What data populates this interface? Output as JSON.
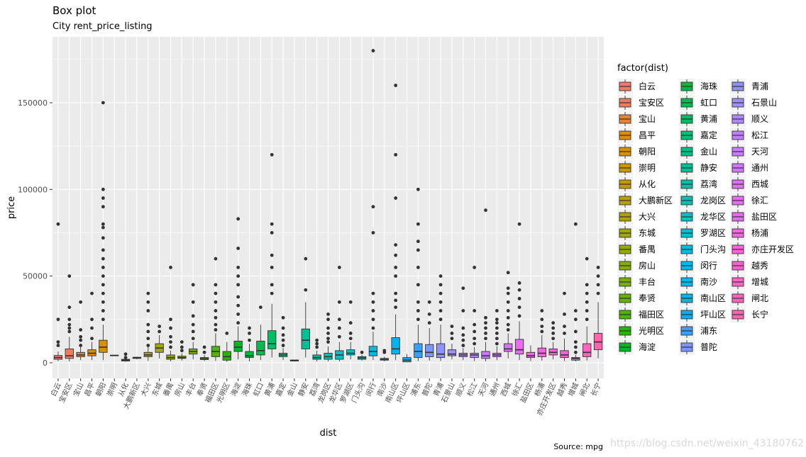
{
  "title": "Box plot",
  "subtitle": "City rent_price_listing",
  "caption": "Source: mpg",
  "watermark": "https://blog.csdn.net/weixin_43180762",
  "chart_data": {
    "type": "box",
    "xlabel": "dist",
    "ylabel": "price",
    "ylim": [
      -9000,
      188000
    ],
    "yticks": [
      0,
      50000,
      100000,
      150000
    ],
    "ytick_labels": [
      "0",
      "50000",
      "100000",
      "150000"
    ],
    "grid": true,
    "legend": {
      "title": "factor(dist)",
      "placement": "right"
    },
    "series": [
      {
        "name": "白云",
        "q1": 2000,
        "median": 3000,
        "q3": 4200,
        "lower": 900,
        "upper": 6500,
        "outliers": [
          10000,
          12000,
          25000,
          80000
        ],
        "color": "#F8766D"
      },
      {
        "name": "宝安区",
        "q1": 2500,
        "median": 4000,
        "q3": 8000,
        "lower": 800,
        "upper": 15000,
        "outliers": [
          18000,
          20000,
          22000,
          25000,
          32000,
          50000
        ],
        "color": "#F17C5D"
      },
      {
        "name": "宝山",
        "q1": 3500,
        "median": 4500,
        "q3": 6000,
        "lower": 1500,
        "upper": 9000,
        "outliers": [
          10000,
          13000,
          15000,
          19000,
          35000
        ],
        "color": "#EA8331"
      },
      {
        "name": "昌平",
        "q1": 4000,
        "median": 5500,
        "q3": 7500,
        "lower": 1500,
        "upper": 12000,
        "outliers": [
          14000,
          20000,
          25000,
          40000
        ],
        "color": "#E28A00"
      },
      {
        "name": "朝阳",
        "q1": 6000,
        "median": 9000,
        "q3": 13000,
        "lower": 1500,
        "upper": 22000,
        "outliers": [
          25000,
          30000,
          35000,
          40000,
          45000,
          50000,
          55000,
          60000,
          65000,
          72000,
          78000,
          80000,
          90000,
          95000,
          100000,
          150000
        ],
        "color": "#D89000"
      },
      {
        "name": "崇明",
        "q1": 4000,
        "median": 4200,
        "q3": 4400,
        "lower": 4000,
        "upper": 4400,
        "outliers": [],
        "color": "#CE9600"
      },
      {
        "name": "从化",
        "q1": 1000,
        "median": 1500,
        "q3": 2000,
        "lower": 600,
        "upper": 2500,
        "outliers": [
          3000,
          5000
        ],
        "color": "#C49A00"
      },
      {
        "name": "大鹏新区",
        "q1": 2500,
        "median": 2800,
        "q3": 3200,
        "lower": 2000,
        "upper": 3500,
        "outliers": [],
        "color": "#B9A000"
      },
      {
        "name": "大兴",
        "q1": 3500,
        "median": 4500,
        "q3": 6000,
        "lower": 1000,
        "upper": 9000,
        "outliers": [
          10000,
          14000,
          18000,
          22000,
          30000,
          35000,
          40000
        ],
        "color": "#ACA300"
      },
      {
        "name": "东城",
        "q1": 6000,
        "median": 8500,
        "q3": 11000,
        "lower": 2500,
        "upper": 16000,
        "outliers": [
          18000,
          21000
        ],
        "color": "#A1A700"
      },
      {
        "name": "番禺",
        "q1": 2000,
        "median": 3000,
        "q3": 4500,
        "lower": 800,
        "upper": 7000,
        "outliers": [
          9000,
          12000,
          15000,
          20000,
          25000,
          55000
        ],
        "color": "#94AA00"
      },
      {
        "name": "房山",
        "q1": 2500,
        "median": 3000,
        "q3": 3800,
        "lower": 1200,
        "upper": 5500,
        "outliers": [
          7000,
          9000,
          12000
        ],
        "color": "#86AC00"
      },
      {
        "name": "丰台",
        "q1": 5000,
        "median": 6500,
        "q3": 8000,
        "lower": 2000,
        "upper": 12000,
        "outliers": [
          14000,
          18000,
          22000,
          27000,
          35000,
          45000
        ],
        "color": "#75B000"
      },
      {
        "name": "奉贤",
        "q1": 1800,
        "median": 2500,
        "q3": 3000,
        "lower": 1000,
        "upper": 4500,
        "outliers": [
          6000,
          9000
        ],
        "color": "#64B200"
      },
      {
        "name": "福田区",
        "q1": 3500,
        "median": 6500,
        "q3": 9500,
        "lower": 1000,
        "upper": 17000,
        "outliers": [
          19000,
          22000,
          26000,
          30000,
          35000,
          40000,
          45000,
          60000
        ],
        "color": "#4CB500"
      },
      {
        "name": "光明区",
        "q1": 1500,
        "median": 3500,
        "q3": 6500,
        "lower": 500,
        "upper": 12000,
        "outliers": [
          17000
        ],
        "color": "#25B700"
      },
      {
        "name": "海淀",
        "q1": 6500,
        "median": 9000,
        "q3": 12500,
        "lower": 2000,
        "upper": 21000,
        "outliers": [
          23000,
          28000,
          33000,
          38000,
          45000,
          50000,
          55000,
          66000,
          83000
        ],
        "color": "#00B81F"
      },
      {
        "name": "海珠",
        "q1": 3000,
        "median": 4000,
        "q3": 6500,
        "lower": 800,
        "upper": 11000,
        "outliers": [
          13000,
          17000,
          20000
        ],
        "color": "#00BA38"
      },
      {
        "name": "虹口",
        "q1": 4500,
        "median": 7000,
        "q3": 12500,
        "lower": 1500,
        "upper": 22000,
        "outliers": [
          32000
        ],
        "color": "#00BB4E"
      },
      {
        "name": "黄浦",
        "q1": 8000,
        "median": 11000,
        "q3": 18500,
        "lower": 3000,
        "upper": 34000,
        "outliers": [
          40000,
          45000,
          55000,
          62000,
          75000,
          80000,
          120000
        ],
        "color": "#00BC63"
      },
      {
        "name": "嘉定",
        "q1": 3500,
        "median": 4500,
        "q3": 5500,
        "lower": 1500,
        "upper": 8500,
        "outliers": [
          10000,
          13000,
          16000,
          20000,
          26000
        ],
        "color": "#00BE75"
      },
      {
        "name": "金山",
        "q1": 1000,
        "median": 1300,
        "q3": 1600,
        "lower": 700,
        "upper": 1800,
        "outliers": [],
        "color": "#00BF87"
      },
      {
        "name": "静安",
        "q1": 8000,
        "median": 13000,
        "q3": 19500,
        "lower": 3000,
        "upper": 35000,
        "outliers": [
          42000,
          60000
        ],
        "color": "#00C097"
      },
      {
        "name": "荔湾",
        "q1": 2000,
        "median": 3000,
        "q3": 4500,
        "lower": 800,
        "upper": 7000,
        "outliers": [
          9000,
          11000,
          13000
        ],
        "color": "#00C0A7"
      },
      {
        "name": "龙岗区",
        "q1": 2000,
        "median": 3500,
        "q3": 5500,
        "lower": 800,
        "upper": 9500,
        "outliers": [
          12000,
          14000,
          17000,
          20000,
          25000,
          28000
        ],
        "color": "#00C1B5"
      },
      {
        "name": "龙华区",
        "q1": 2000,
        "median": 4500,
        "q3": 7000,
        "lower": 800,
        "upper": 12000,
        "outliers": [
          15000,
          20000,
          25000,
          35000,
          55000
        ],
        "color": "#00C1C3"
      },
      {
        "name": "罗湖区",
        "q1": 4500,
        "median": 5500,
        "q3": 7500,
        "lower": 2000,
        "upper": 12000,
        "outliers": [
          14000,
          17000,
          23000,
          35000
        ],
        "color": "#00BFD0"
      },
      {
        "name": "门头沟",
        "q1": 2000,
        "median": 2800,
        "q3": 3500,
        "lower": 1200,
        "upper": 4500,
        "outliers": [
          6000
        ],
        "color": "#00BDDC"
      },
      {
        "name": "闵行",
        "q1": 4000,
        "median": 6500,
        "q3": 9500,
        "lower": 1500,
        "upper": 18000,
        "outliers": [
          20000,
          25000,
          30000,
          35000,
          40000,
          75000,
          90000,
          180000
        ],
        "color": "#00BBE7"
      },
      {
        "name": "南沙",
        "q1": 1500,
        "median": 2000,
        "q3": 2500,
        "lower": 800,
        "upper": 3500,
        "outliers": [
          6000,
          7000
        ],
        "color": "#00B8F0"
      },
      {
        "name": "南山区",
        "q1": 5000,
        "median": 8000,
        "q3": 14500,
        "lower": 1500,
        "upper": 28000,
        "outliers": [
          32000,
          36000,
          40000,
          50000,
          55000,
          62000,
          68000,
          95000,
          120000,
          160000
        ],
        "color": "#00B4F0"
      },
      {
        "name": "坪山区",
        "q1": 500,
        "median": 1500,
        "q3": 3000,
        "lower": 300,
        "upper": 5000,
        "outliers": [],
        "color": "#00AEFA"
      },
      {
        "name": "浦东",
        "q1": 3000,
        "median": 6500,
        "q3": 11000,
        "lower": 1000,
        "upper": 22000,
        "outliers": [
          25000,
          30000,
          35000,
          45000,
          55000,
          65000,
          70000,
          80000,
          100000
        ],
        "color": "#35A2FF"
      },
      {
        "name": "普陀",
        "q1": 3500,
        "median": 6000,
        "q3": 10500,
        "lower": 1200,
        "upper": 20000,
        "outliers": [
          23000,
          28000,
          35000
        ],
        "color": "#7997FF"
      },
      {
        "name": "青浦",
        "q1": 3000,
        "median": 5000,
        "q3": 11000,
        "lower": 1000,
        "upper": 22000,
        "outliers": [
          25000,
          30000,
          35000,
          40000,
          45000,
          50000
        ],
        "color": "#8F91FF"
      },
      {
        "name": "石景山",
        "q1": 4000,
        "median": 5000,
        "q3": 7500,
        "lower": 2000,
        "upper": 11000,
        "outliers": [
          14000,
          17000,
          21000
        ],
        "color": "#A18DFF"
      },
      {
        "name": "顺义",
        "q1": 3500,
        "median": 4500,
        "q3": 5500,
        "lower": 1500,
        "upper": 8500,
        "outliers": [
          10000,
          13000,
          16000,
          20000,
          30000,
          43000
        ],
        "color": "#B185FF"
      },
      {
        "name": "松江",
        "q1": 3000,
        "median": 4500,
        "q3": 5500,
        "lower": 1000,
        "upper": 9000,
        "outliers": [
          11000,
          14000,
          18000,
          22000,
          30000,
          55000
        ],
        "color": "#BE80FF"
      },
      {
        "name": "天河",
        "q1": 2500,
        "median": 4000,
        "q3": 6500,
        "lower": 800,
        "upper": 12000,
        "outliers": [
          14000,
          17000,
          20000,
          23000,
          26000,
          88000
        ],
        "color": "#CB7BFF"
      },
      {
        "name": "通州",
        "q1": 3500,
        "median": 4500,
        "q3": 5500,
        "lower": 1500,
        "upper": 9500,
        "outliers": [
          11000,
          14000,
          17000,
          20000,
          23000,
          25000,
          30000
        ],
        "color": "#D575FE"
      },
      {
        "name": "西城",
        "q1": 6500,
        "median": 8000,
        "q3": 11000,
        "lower": 2500,
        "upper": 17000,
        "outliers": [
          19000,
          22000,
          26000,
          30000,
          35000,
          40000,
          43000,
          52000
        ],
        "color": "#DF70F8"
      },
      {
        "name": "徐汇",
        "q1": 5000,
        "median": 7500,
        "q3": 13500,
        "lower": 1500,
        "upper": 24000,
        "outliers": [
          27000,
          32000,
          37000,
          42000,
          46000,
          80000
        ],
        "color": "#E76BF3"
      },
      {
        "name": "盐田区",
        "q1": 3000,
        "median": 4000,
        "q3": 6000,
        "lower": 1000,
        "upper": 10000,
        "outliers": [],
        "color": "#EF67EB"
      },
      {
        "name": "杨浦",
        "q1": 3500,
        "median": 5500,
        "q3": 8500,
        "lower": 1200,
        "upper": 16000,
        "outliers": [
          18000,
          21000,
          25000,
          30000
        ],
        "color": "#F564E3"
      },
      {
        "name": "亦庄开发区",
        "q1": 4500,
        "median": 6000,
        "q3": 8000,
        "lower": 2000,
        "upper": 12000,
        "outliers": [
          14000,
          17000,
          20000,
          23000
        ],
        "color": "#FA62DB"
      },
      {
        "name": "越秀",
        "q1": 3000,
        "median": 4500,
        "q3": 7000,
        "lower": 1000,
        "upper": 14000,
        "outliers": [
          17000,
          21000,
          28000,
          40000
        ],
        "color": "#FD61D1"
      },
      {
        "name": "增城",
        "q1": 1500,
        "median": 2500,
        "q3": 3000,
        "lower": 800,
        "upper": 4500,
        "outliers": [
          6000,
          9000,
          12000,
          18000,
          25000,
          30000,
          80000
        ],
        "color": "#FF61C7"
      },
      {
        "name": "闸北",
        "q1": 3500,
        "median": 6000,
        "q3": 11000,
        "lower": 1200,
        "upper": 21000,
        "outliers": [
          25000,
          30000,
          35000,
          40000,
          45000,
          60000
        ],
        "color": "#FF62BC"
      },
      {
        "name": "长宁",
        "q1": 7500,
        "median": 12000,
        "q3": 17000,
        "lower": 2500,
        "upper": 35000,
        "outliers": [
          40000,
          45000,
          50000,
          55000
        ],
        "color": "#FF65AE"
      }
    ]
  }
}
